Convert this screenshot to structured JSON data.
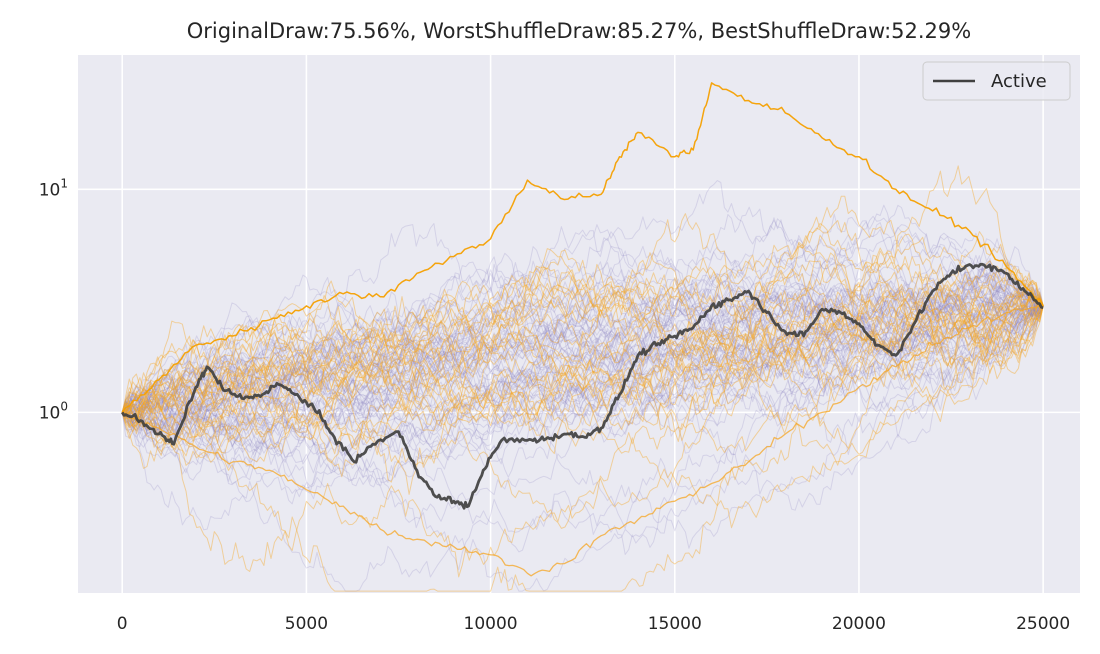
{
  "chart_data": {
    "type": "line",
    "title": "OriginalDraw:75.56%, WorstShuffleDraw:85.27%, BestShuffleDraw:52.29%",
    "xlabel": "",
    "ylabel": "",
    "x_range": [
      -1200,
      26000
    ],
    "y_scale": "log",
    "y_range": [
      0.155,
      40
    ],
    "x_ticks": [
      0,
      5000,
      10000,
      15000,
      20000,
      25000
    ],
    "x_tick_labels": [
      "0",
      "5000",
      "10000",
      "15000",
      "20000",
      "25000"
    ],
    "y_ticks": [
      1,
      10
    ],
    "y_tick_labels": [
      {
        "base": "10",
        "exp": "0"
      },
      {
        "base": "10",
        "exp": "1"
      }
    ],
    "grid": true,
    "legend": {
      "position": "top-right",
      "entries": [
        "Active"
      ]
    },
    "colors": {
      "background": "#eaeaf2",
      "grid": "#ffffff",
      "active": "#404040",
      "shuffle_purple": "#8a7fc0",
      "shuffle_orange": "#f5a623",
      "highlight_orange": "#f5a000"
    },
    "series": [
      {
        "name": "Active",
        "x": [
          0,
          500,
          1000,
          1400,
          2000,
          2300,
          2800,
          3300,
          3800,
          4200,
          4700,
          5200,
          5700,
          6300,
          6800,
          7500,
          8000,
          8500,
          9000,
          9400,
          9800,
          10300,
          11000,
          11500,
          12000,
          12500,
          13000,
          13500,
          14000,
          14500,
          15000,
          15500,
          16000,
          16500,
          17000,
          17500,
          18000,
          18500,
          19000,
          19500,
          20000,
          20500,
          21000,
          21500,
          22000,
          22500,
          23000,
          23500,
          24000,
          24500,
          25000
        ],
        "y": [
          1.0,
          0.92,
          0.8,
          0.72,
          1.3,
          1.6,
          1.25,
          1.15,
          1.2,
          1.35,
          1.2,
          1.05,
          0.8,
          0.6,
          0.72,
          0.82,
          0.55,
          0.42,
          0.4,
          0.38,
          0.55,
          0.75,
          0.75,
          0.76,
          0.8,
          0.78,
          0.85,
          1.2,
          1.8,
          2.0,
          2.2,
          2.4,
          3.0,
          3.2,
          3.5,
          2.8,
          2.3,
          2.2,
          2.9,
          2.8,
          2.5,
          2.0,
          1.8,
          2.5,
          3.5,
          4.2,
          4.6,
          4.5,
          4.2,
          3.5,
          2.95
        ]
      },
      {
        "name": "",
        "x": [
          0,
          1000,
          2000,
          3000,
          4000,
          5000,
          6000,
          7000,
          8000,
          9000,
          10000,
          11000,
          12000,
          13000,
          13500,
          14000,
          15000,
          15500,
          16000,
          17000,
          18000,
          19000,
          20000,
          21000,
          22000,
          23000,
          24000,
          25000
        ],
        "y": [
          1.0,
          1.4,
          2.0,
          2.2,
          2.6,
          3.0,
          3.4,
          3.3,
          4.2,
          5.0,
          6.0,
          11.0,
          9.0,
          9.5,
          14.0,
          18.0,
          14.0,
          15.0,
          30.0,
          25.0,
          22.0,
          17.0,
          14.0,
          10.0,
          8.0,
          6.5,
          4.5,
          3.0
        ]
      },
      {
        "name": "",
        "x": [
          0,
          1000,
          2000,
          3000,
          4000,
          5000,
          6000,
          7000,
          8000,
          9000,
          10000,
          11000,
          12000,
          13000,
          14000,
          15000,
          16000,
          17000,
          18000,
          19000,
          20000,
          21000,
          22000,
          23000,
          24000,
          25000
        ],
        "y": [
          1.0,
          0.85,
          0.7,
          0.6,
          0.55,
          0.45,
          0.38,
          0.3,
          0.27,
          0.25,
          0.23,
          0.19,
          0.21,
          0.28,
          0.33,
          0.4,
          0.48,
          0.6,
          0.8,
          1.0,
          1.3,
          1.6,
          2.0,
          2.4,
          2.8,
          3.0
        ]
      }
    ]
  }
}
